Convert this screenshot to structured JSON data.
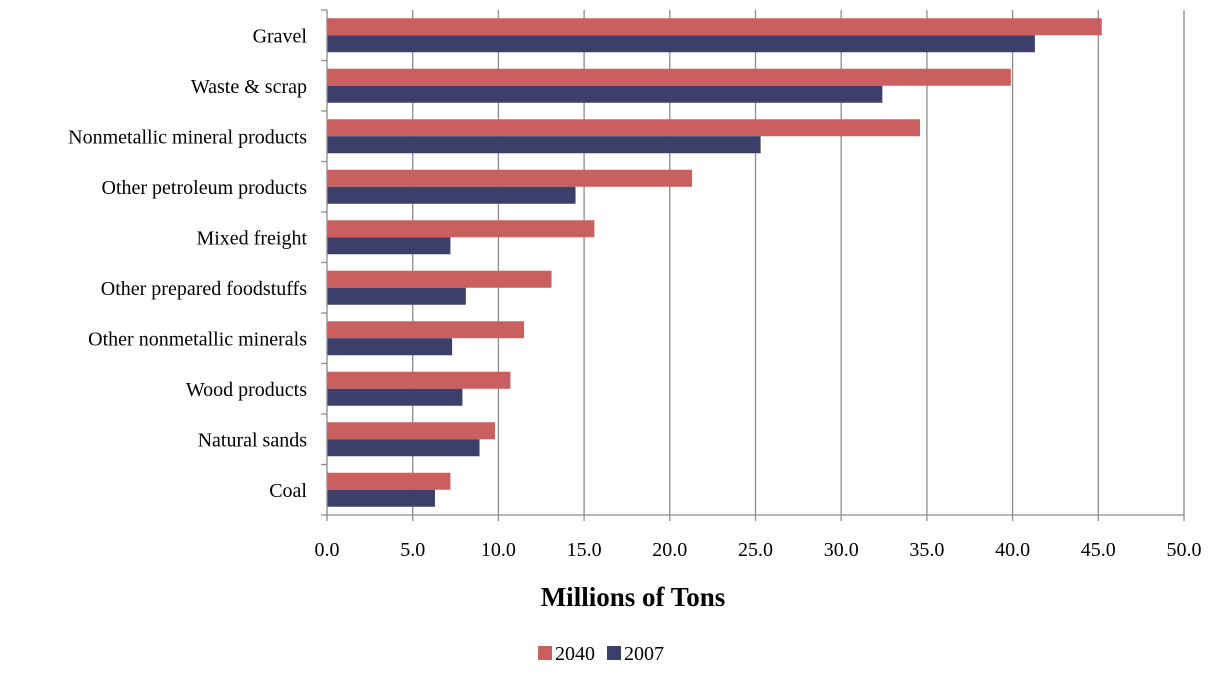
{
  "chart_data": {
    "type": "bar",
    "orientation": "horizontal",
    "categories": [
      "Gravel",
      "Waste & scrap",
      "Nonmetallic mineral products",
      "Other petroleum products",
      "Mixed freight",
      "Other prepared foodstuffs",
      "Other nonmetallic minerals",
      "Wood products",
      "Natural sands",
      "Coal"
    ],
    "series": [
      {
        "name": "2040",
        "color": "#C9605F",
        "values": [
          45.2,
          39.9,
          34.6,
          21.3,
          15.6,
          13.1,
          11.5,
          10.7,
          9.8,
          7.2
        ]
      },
      {
        "name": "2007",
        "color": "#3D3F6B",
        "values": [
          41.3,
          32.4,
          25.3,
          14.5,
          7.2,
          8.1,
          7.3,
          7.9,
          8.9,
          6.3
        ]
      }
    ],
    "xlabel": "Millions of Tons",
    "xlim": [
      0,
      50
    ],
    "xticks": [
      "0.0",
      "5.0",
      "10.0",
      "15.0",
      "20.0",
      "25.0",
      "30.0",
      "35.0",
      "40.0",
      "45.0",
      "50.0"
    ],
    "grid": true,
    "legend_position": "bottom"
  }
}
